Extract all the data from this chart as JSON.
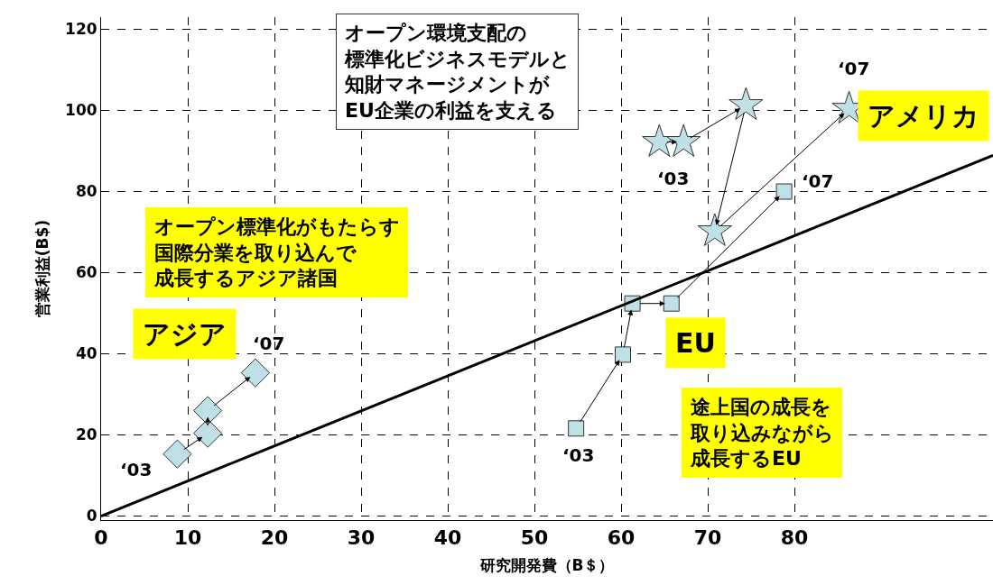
{
  "chart_data": {
    "type": "scatter",
    "xlabel": "研究開発費（B＄）",
    "ylabel": "営業利益(B$)",
    "xlim": [
      0,
      102.9
    ],
    "xticks": [
      0,
      10,
      20,
      30,
      40,
      50,
      60,
      70,
      80
    ],
    "ylim": [
      -1,
      123
    ],
    "yticks": [
      0,
      20,
      40,
      60,
      80,
      100,
      120
    ],
    "grid": true,
    "legend": false,
    "series": [
      {
        "name": "アジア",
        "marker": "diamond",
        "color": "#bfe0e6",
        "x": [
          8.8,
          12.3,
          12.3,
          17.8
        ],
        "values": [
          15.3,
          20.4,
          26,
          35.3
        ]
      },
      {
        "name": "EU",
        "marker": "square",
        "color": "#bfe0e6",
        "x": [
          54.8,
          60.2,
          61.3,
          65.8,
          78.8
        ],
        "values": [
          21.6,
          39.8,
          52.4,
          52.4,
          80
        ]
      },
      {
        "name": "アメリカ",
        "marker": "star",
        "color": "#bfe0e6",
        "x": [
          64.4,
          67.2,
          74.4,
          70.8,
          86.3
        ],
        "values": [
          92.2,
          92.2,
          101.3,
          70.2,
          100.4
        ]
      },
      {
        "type": "line",
        "color": "#000000",
        "line_style": "solid",
        "x": [
          0,
          102.9
        ],
        "values": [
          0,
          88.9
        ]
      }
    ],
    "annotations": [
      "オープン環境支配の標準化ビジネスモデルと知財マネージメントがEU企業の利益を支える",
      "オープン標準化がもたらす国際分業を取り込んで成長するアジア諸国",
      "途上国の成長を取り込みながら成長するEU",
      {
        "text": "‘03",
        "x": 8.8,
        "y": 15.3
      },
      {
        "text": "‘07",
        "x": 17.8,
        "y": 35.3
      },
      {
        "text": "‘03",
        "x": 54.8,
        "y": 21.6
      },
      {
        "text": "‘07",
        "x": 78.8,
        "y": 80
      },
      {
        "text": "‘03",
        "x": 64.4,
        "y": 92.2
      },
      {
        "text": "‘07",
        "x": 86.3,
        "y": 100.4
      }
    ]
  }
}
